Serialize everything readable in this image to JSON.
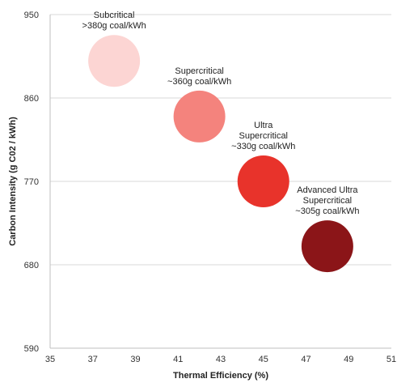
{
  "chart_data": {
    "type": "scatter",
    "title": "",
    "xlabel": "Thermal Efficiency (%)",
    "ylabel": "Carbon Intensity (g C02 / kWh)",
    "xlim": [
      35,
      51
    ],
    "ylim": [
      590,
      950
    ],
    "xticks": [
      35,
      37,
      39,
      41,
      43,
      45,
      47,
      49,
      51
    ],
    "yticks": [
      590,
      680,
      770,
      860,
      950
    ],
    "grid": "horizontal",
    "points": [
      {
        "x": 38,
        "y": 900,
        "color": "#fcd5d3",
        "label": [
          "Subcritical",
          ">380g coal/kWh"
        ]
      },
      {
        "x": 42,
        "y": 840,
        "color": "#f4837d",
        "label": [
          "Supercritical",
          "~360g coal/kWh"
        ]
      },
      {
        "x": 45,
        "y": 770,
        "color": "#e8332b",
        "label": [
          "Ultra",
          "Supercritical",
          "~330g coal/kWh"
        ]
      },
      {
        "x": 48,
        "y": 700,
        "color": "#8b1518",
        "label": [
          "Advanced Ultra",
          "Supercritical",
          "~305g coal/kWh"
        ]
      }
    ]
  }
}
